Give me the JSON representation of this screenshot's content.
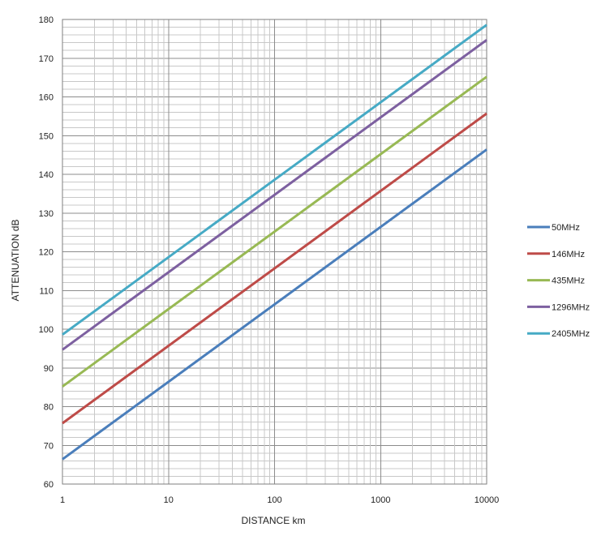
{
  "chart_data": {
    "type": "line",
    "title": "",
    "xlabel": "DISTANCE km",
    "ylabel": "ATTENUATION dB",
    "x_scale": "log",
    "xlim": [
      1,
      10000
    ],
    "ylim": [
      60,
      180
    ],
    "grid": true,
    "legend_position": "right",
    "x_tick_labels": [
      "1",
      "10",
      "100",
      "1000",
      "10000"
    ],
    "y_tick_labels": [
      "60",
      "70",
      "80",
      "90",
      "100",
      "110",
      "120",
      "130",
      "140",
      "150",
      "160",
      "170",
      "180"
    ],
    "series": [
      {
        "name": "50MHz",
        "color": "#4a7ebb",
        "x": [
          1,
          10000
        ],
        "y": [
          66.4,
          146.4
        ]
      },
      {
        "name": "146MHz",
        "color": "#be4b48",
        "x": [
          1,
          10000
        ],
        "y": [
          75.7,
          155.7
        ]
      },
      {
        "name": "435MHz",
        "color": "#98b954",
        "x": [
          1,
          10000
        ],
        "y": [
          85.2,
          165.2
        ]
      },
      {
        "name": "1296MHz",
        "color": "#7d60a0",
        "x": [
          1,
          10000
        ],
        "y": [
          94.7,
          174.7
        ]
      },
      {
        "name": "2405MHz",
        "color": "#46aac5",
        "x": [
          1,
          10000
        ],
        "y": [
          98.6,
          178.6
        ]
      }
    ]
  }
}
